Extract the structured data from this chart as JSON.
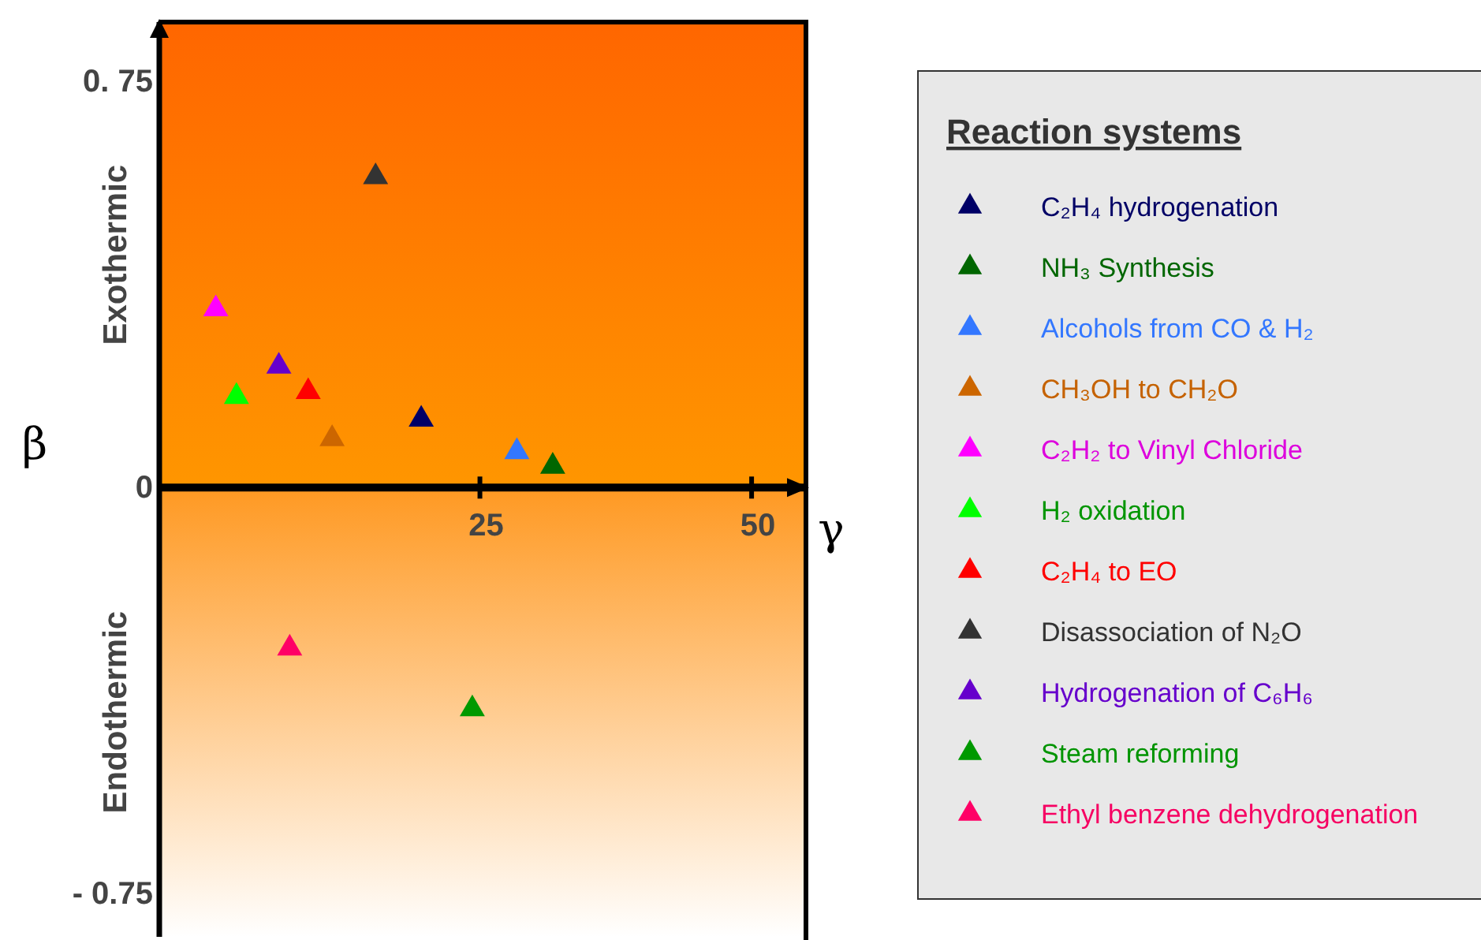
{
  "chart_data": {
    "type": "scatter",
    "xlabel": "γ",
    "ylabel": "β",
    "legend_title": "Reaction systems",
    "legend": "right",
    "marker": "triangle",
    "xlim": [
      -4.5,
      55
    ],
    "xticks": [
      25,
      50
    ],
    "ylim": [
      -0.83,
      0.86
    ],
    "yticks": [
      {
        "value": 0.75,
        "label": "0. 75"
      },
      0,
      {
        "value": -0.75,
        "label": "- 0.75"
      }
    ],
    "bands": [
      {
        "axis": "y",
        "from": 0,
        "to": 0.86,
        "label": "Exothermic",
        "color": "#ff6600"
      },
      {
        "axis": "y",
        "from": -0.83,
        "to": 0,
        "label": "Endothermic",
        "color": "#ff9922"
      }
    ],
    "series": [
      {
        "name": "C₂H₄ hydrogenation",
        "color": "#000066",
        "x": [
          19.6
        ],
        "values": [
          0.126
        ]
      },
      {
        "name": "NH₃ Synthesis",
        "color": "#006600",
        "x": [
          31.7
        ],
        "values": [
          0.039
        ]
      },
      {
        "name": "Alcohols from CO & H₂",
        "color": "#3377ff",
        "x": [
          28.4
        ],
        "values": [
          0.066
        ]
      },
      {
        "name": "CH₃OH to CH₂O",
        "color": "#cc6600",
        "x": [
          11.4
        ],
        "values": [
          0.09
        ]
      },
      {
        "name": "C₂H₂ to Vinyl Chloride",
        "color": "#ff00ff",
        "x": [
          0.7
        ],
        "values": [
          0.33
        ]
      },
      {
        "name": "H₂ oxidation",
        "color": "#00ff00",
        "x": [
          2.6
        ],
        "values": [
          0.168
        ]
      },
      {
        "name": "C₂H₄ to EO",
        "color": "#ff0000",
        "x": [
          9.2
        ],
        "values": [
          0.177
        ]
      },
      {
        "name": "Disassociation of N₂O",
        "color": "#333333",
        "x": [
          15.4
        ],
        "values": [
          0.574
        ]
      },
      {
        "name": "Hydrogenation of C₆H₆",
        "color": "#6600cc",
        "x": [
          6.5
        ],
        "values": [
          0.224
        ]
      },
      {
        "name": "Steam reforming",
        "color": "#009900",
        "x": [
          24.3
        ],
        "values": [
          -0.409
        ]
      },
      {
        "name": "Ethyl benzene dehydrogenation",
        "color": "#ff0066",
        "x": [
          7.5
        ],
        "values": [
          -0.297
        ]
      }
    ]
  }
}
